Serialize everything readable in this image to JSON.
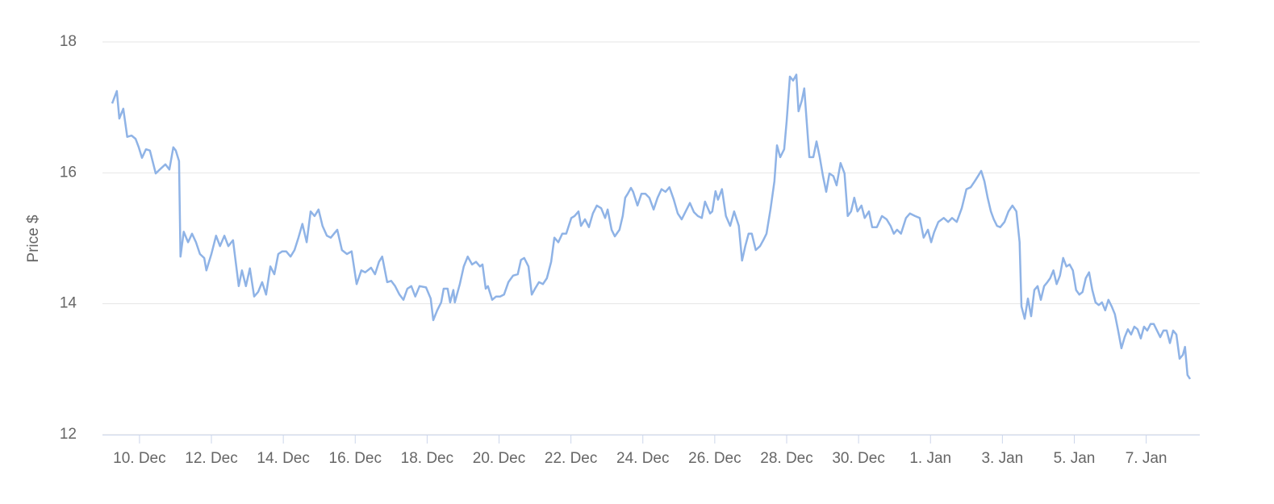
{
  "chart_data": {
    "type": "line",
    "y_label": "Price $",
    "grid": true,
    "xlim": [
      -1.03,
      29.49
    ],
    "ylim": [
      12,
      18
    ],
    "yticks": [
      12,
      14,
      16,
      18
    ],
    "xticks": [
      {
        "value": 0,
        "label": "10. Dec"
      },
      {
        "value": 2,
        "label": "12. Dec"
      },
      {
        "value": 4,
        "label": "14. Dec"
      },
      {
        "value": 6,
        "label": "16. Dec"
      },
      {
        "value": 8,
        "label": "18. Dec"
      },
      {
        "value": 10,
        "label": "20. Dec"
      },
      {
        "value": 12,
        "label": "22. Dec"
      },
      {
        "value": 14,
        "label": "24. Dec"
      },
      {
        "value": 16,
        "label": "26. Dec"
      },
      {
        "value": 18,
        "label": "28. Dec"
      },
      {
        "value": 20,
        "label": "30. Dec"
      },
      {
        "value": 22,
        "label": "1. Jan"
      },
      {
        "value": 24,
        "label": "3. Jan"
      },
      {
        "value": 26,
        "label": "5. Jan"
      },
      {
        "value": 28,
        "label": "7. Jan"
      }
    ],
    "series": [
      {
        "color": "#8fb3e6",
        "x": [
          -0.76,
          -0.63,
          -0.56,
          -0.45,
          -0.34,
          -0.22,
          -0.11,
          -0.02,
          0.07,
          0.18,
          0.29,
          0.45,
          0.56,
          0.72,
          0.83,
          0.94,
          1.01,
          1.1,
          1.14,
          1.23,
          1.35,
          1.46,
          1.57,
          1.68,
          1.8,
          1.86,
          2.0,
          2.13,
          2.24,
          2.36,
          2.47,
          2.6,
          2.76,
          2.85,
          2.96,
          3.07,
          3.19,
          3.3,
          3.41,
          3.52,
          3.64,
          3.75,
          3.86,
          3.97,
          4.08,
          4.2,
          4.31,
          4.42,
          4.53,
          4.65,
          4.76,
          4.87,
          4.98,
          5.09,
          5.21,
          5.32,
          5.5,
          5.63,
          5.77,
          5.9,
          6.04,
          6.17,
          6.28,
          6.44,
          6.55,
          6.66,
          6.75,
          6.89,
          7.0,
          7.11,
          7.23,
          7.34,
          7.45,
          7.56,
          7.67,
          7.79,
          7.97,
          8.1,
          8.17,
          8.28,
          8.39,
          8.46,
          8.57,
          8.64,
          8.73,
          8.77,
          8.91,
          9.02,
          9.13,
          9.25,
          9.36,
          9.47,
          9.54,
          9.63,
          9.69,
          9.81,
          9.92,
          10.03,
          10.14,
          10.26,
          10.39,
          10.52,
          10.61,
          10.7,
          10.82,
          10.91,
          11.0,
          11.11,
          11.22,
          11.33,
          11.45,
          11.54,
          11.65,
          11.76,
          11.87,
          12.01,
          12.1,
          12.21,
          12.28,
          12.39,
          12.5,
          12.61,
          12.72,
          12.84,
          12.95,
          13.02,
          13.13,
          13.22,
          13.35,
          13.44,
          13.51,
          13.58,
          13.67,
          13.73,
          13.85,
          13.96,
          14.07,
          14.18,
          14.3,
          14.41,
          14.52,
          14.63,
          14.74,
          14.86,
          14.97,
          15.08,
          15.19,
          15.31,
          15.42,
          15.53,
          15.64,
          15.73,
          15.87,
          15.93,
          16.02,
          16.09,
          16.2,
          16.31,
          16.43,
          16.54,
          16.67,
          16.76,
          16.85,
          16.94,
          17.03,
          17.14,
          17.26,
          17.35,
          17.44,
          17.55,
          17.66,
          17.73,
          17.82,
          17.93,
          18.0,
          18.09,
          18.18,
          18.27,
          18.33,
          18.42,
          18.49,
          18.63,
          18.74,
          18.83,
          18.92,
          19.01,
          19.1,
          19.19,
          19.3,
          19.39,
          19.5,
          19.61,
          19.7,
          19.79,
          19.88,
          19.97,
          20.08,
          20.17,
          20.29,
          20.38,
          20.51,
          20.65,
          20.78,
          20.89,
          20.98,
          21.07,
          21.18,
          21.32,
          21.43,
          21.57,
          21.7,
          21.81,
          21.93,
          22.02,
          22.1,
          22.22,
          22.37,
          22.49,
          22.6,
          22.73,
          22.87,
          23.0,
          23.12,
          23.23,
          23.32,
          23.41,
          23.5,
          23.59,
          23.68,
          23.76,
          23.85,
          23.94,
          24.06,
          24.17,
          24.28,
          24.39,
          24.48,
          24.53,
          24.62,
          24.71,
          24.8,
          24.89,
          24.98,
          25.07,
          25.16,
          25.25,
          25.33,
          25.42,
          25.51,
          25.6,
          25.69,
          25.78,
          25.87,
          25.96,
          26.05,
          26.14,
          26.23,
          26.32,
          26.41,
          26.5,
          26.59,
          26.68,
          26.77,
          26.86,
          26.95,
          27.04,
          27.13,
          27.22,
          27.31,
          27.4,
          27.49,
          27.58,
          27.67,
          27.76,
          27.85,
          27.94,
          28.03,
          28.12,
          28.21,
          28.3,
          28.39,
          28.48,
          28.57,
          28.66,
          28.75,
          28.84,
          28.93,
          29.02,
          29.08,
          29.15,
          29.22
        ],
        "values": [
          17.06,
          17.25,
          16.83,
          16.98,
          16.55,
          16.57,
          16.52,
          16.39,
          16.23,
          16.36,
          16.34,
          15.99,
          16.05,
          16.13,
          16.05,
          16.39,
          16.34,
          16.18,
          14.72,
          15.1,
          14.94,
          15.07,
          14.94,
          14.76,
          14.7,
          14.51,
          14.76,
          15.04,
          14.88,
          15.04,
          14.88,
          14.97,
          14.27,
          14.51,
          14.27,
          14.54,
          14.11,
          14.18,
          14.33,
          14.14,
          14.57,
          14.45,
          14.76,
          14.8,
          14.8,
          14.72,
          14.82,
          15.01,
          15.22,
          14.94,
          15.41,
          15.34,
          15.44,
          15.19,
          15.04,
          15.01,
          15.13,
          14.82,
          14.76,
          14.8,
          14.3,
          14.51,
          14.48,
          14.55,
          14.45,
          14.64,
          14.72,
          14.33,
          14.35,
          14.27,
          14.14,
          14.06,
          14.23,
          14.27,
          14.11,
          14.27,
          14.25,
          14.08,
          13.75,
          13.9,
          14.02,
          14.23,
          14.23,
          14.02,
          14.21,
          14.02,
          14.3,
          14.57,
          14.72,
          14.6,
          14.64,
          14.57,
          14.6,
          14.23,
          14.27,
          14.06,
          14.11,
          14.11,
          14.14,
          14.33,
          14.43,
          14.45,
          14.67,
          14.7,
          14.57,
          14.14,
          14.23,
          14.33,
          14.3,
          14.39,
          14.64,
          15.01,
          14.94,
          15.07,
          15.07,
          15.31,
          15.34,
          15.41,
          15.19,
          15.29,
          15.17,
          15.38,
          15.5,
          15.46,
          15.31,
          15.44,
          15.13,
          15.03,
          15.13,
          15.34,
          15.62,
          15.68,
          15.77,
          15.71,
          15.5,
          15.68,
          15.68,
          15.62,
          15.44,
          15.62,
          15.75,
          15.71,
          15.78,
          15.59,
          15.38,
          15.29,
          15.41,
          15.54,
          15.4,
          15.34,
          15.31,
          15.56,
          15.38,
          15.41,
          15.72,
          15.59,
          15.75,
          15.34,
          15.19,
          15.41,
          15.19,
          14.66,
          14.88,
          15.07,
          15.07,
          14.82,
          14.88,
          14.97,
          15.07,
          15.44,
          15.87,
          16.42,
          16.24,
          16.36,
          16.79,
          17.47,
          17.41,
          17.5,
          16.94,
          17.1,
          17.29,
          16.24,
          16.24,
          16.48,
          16.24,
          15.95,
          15.71,
          15.99,
          15.95,
          15.81,
          16.15,
          15.99,
          15.34,
          15.41,
          15.62,
          15.41,
          15.5,
          15.31,
          15.41,
          15.17,
          15.17,
          15.34,
          15.29,
          15.19,
          15.07,
          15.13,
          15.07,
          15.31,
          15.38,
          15.34,
          15.31,
          15.01,
          15.13,
          14.94,
          15.09,
          15.25,
          15.31,
          15.25,
          15.31,
          15.25,
          15.46,
          15.75,
          15.78,
          15.87,
          15.95,
          16.03,
          15.87,
          15.62,
          15.41,
          15.29,
          15.19,
          15.17,
          15.25,
          15.41,
          15.5,
          15.41,
          14.94,
          13.96,
          13.77,
          14.08,
          13.81,
          14.21,
          14.27,
          14.06,
          14.27,
          14.33,
          14.39,
          14.51,
          14.3,
          14.43,
          14.7,
          14.57,
          14.6,
          14.51,
          14.21,
          14.14,
          14.18,
          14.39,
          14.48,
          14.21,
          14.02,
          13.98,
          14.02,
          13.9,
          14.06,
          13.96,
          13.84,
          13.59,
          13.32,
          13.49,
          13.61,
          13.53,
          13.65,
          13.61,
          13.47,
          13.65,
          13.59,
          13.69,
          13.69,
          13.59,
          13.49,
          13.59,
          13.59,
          13.4,
          13.59,
          13.53,
          13.16,
          13.22,
          13.34,
          12.91,
          12.85
        ]
      }
    ]
  }
}
